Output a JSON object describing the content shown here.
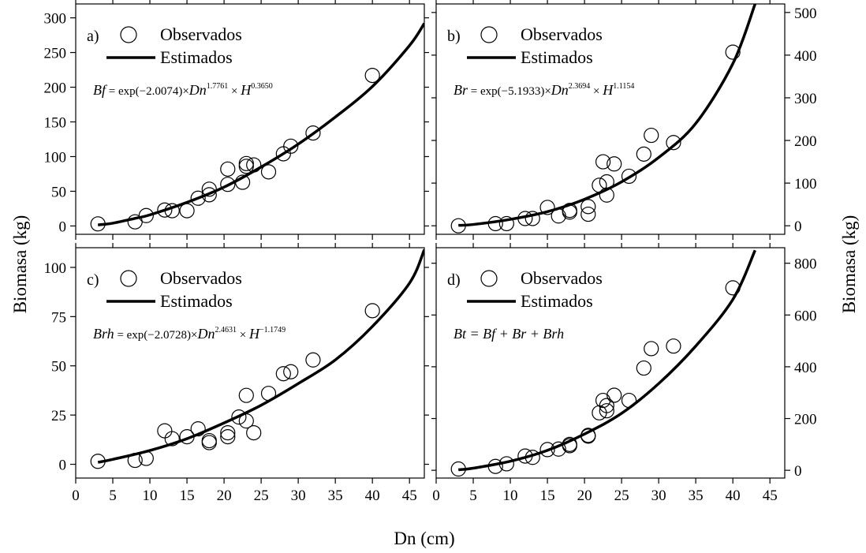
{
  "figure": {
    "xlabel": "Dn (cm)",
    "ylabel_left": "Biomasa (kg)",
    "ylabel_right": "Biomasa (kg)"
  },
  "chart_data": [
    {
      "type": "scatter",
      "panel_label": "a)",
      "legend": {
        "observed": "Observados",
        "estimated": "Estimados",
        "placement": "top-left"
      },
      "equation": {
        "lhs": "Bf",
        "prefix": " = exp(",
        "coef": "−2.0074",
        "mid1": ")×",
        "v1": "Dn",
        "e1": "1.7761",
        "mid2": " × ",
        "v2": "H",
        "e2": "0.3650"
      },
      "xlim": [
        0,
        47
      ],
      "ylim": [
        -12,
        320
      ],
      "xticks": [
        0,
        5,
        10,
        15,
        20,
        25,
        30,
        35,
        40,
        45
      ],
      "yticks": [
        0,
        50,
        100,
        150,
        200,
        250,
        300
      ],
      "y_axis_side": "left",
      "observed": [
        {
          "x": 3,
          "y": 3
        },
        {
          "x": 8,
          "y": 6
        },
        {
          "x": 9.5,
          "y": 15
        },
        {
          "x": 12,
          "y": 23
        },
        {
          "x": 13,
          "y": 22
        },
        {
          "x": 15,
          "y": 22
        },
        {
          "x": 16.5,
          "y": 40
        },
        {
          "x": 18,
          "y": 53
        },
        {
          "x": 18,
          "y": 45
        },
        {
          "x": 20.5,
          "y": 82
        },
        {
          "x": 20.5,
          "y": 60
        },
        {
          "x": 22.5,
          "y": 63
        },
        {
          "x": 23,
          "y": 86
        },
        {
          "x": 23,
          "y": 90
        },
        {
          "x": 24,
          "y": 88
        },
        {
          "x": 26,
          "y": 78
        },
        {
          "x": 28,
          "y": 104
        },
        {
          "x": 29,
          "y": 115
        },
        {
          "x": 32,
          "y": 134
        },
        {
          "x": 40,
          "y": 217
        }
      ],
      "estimated": {
        "x": [
          3,
          5,
          8,
          10,
          15,
          20,
          25,
          30,
          35,
          40,
          45,
          47
        ],
        "y": [
          1.5,
          4,
          11,
          16,
          34,
          56,
          85,
          118,
          157,
          201,
          260,
          292
        ]
      }
    },
    {
      "type": "scatter",
      "panel_label": "b)",
      "legend": {
        "observed": "Observados",
        "estimated": "Estimados",
        "placement": "top-left"
      },
      "equation": {
        "lhs": "Br",
        "prefix": " = exp(",
        "coef": "−5.1933",
        "mid1": ")×",
        "v1": "Dn",
        "e1": "2.3694",
        "mid2": " × ",
        "v2": "H",
        "e2": "1.1154"
      },
      "xlim": [
        0,
        47
      ],
      "ylim": [
        -20,
        520
      ],
      "xticks": [
        0,
        5,
        10,
        15,
        20,
        25,
        30,
        35,
        40,
        45
      ],
      "yticks": [
        0,
        100,
        200,
        300,
        400,
        500
      ],
      "y_axis_side": "right",
      "observed": [
        {
          "x": 3,
          "y": 0
        },
        {
          "x": 8,
          "y": 5
        },
        {
          "x": 9.5,
          "y": 5
        },
        {
          "x": 12,
          "y": 17
        },
        {
          "x": 13,
          "y": 17
        },
        {
          "x": 15,
          "y": 43
        },
        {
          "x": 16.5,
          "y": 23
        },
        {
          "x": 18,
          "y": 36
        },
        {
          "x": 18,
          "y": 32
        },
        {
          "x": 20.5,
          "y": 27
        },
        {
          "x": 20.5,
          "y": 45
        },
        {
          "x": 22,
          "y": 95
        },
        {
          "x": 22.5,
          "y": 150
        },
        {
          "x": 23,
          "y": 103
        },
        {
          "x": 23,
          "y": 72
        },
        {
          "x": 24,
          "y": 145
        },
        {
          "x": 26,
          "y": 116
        },
        {
          "x": 28,
          "y": 168
        },
        {
          "x": 29,
          "y": 212
        },
        {
          "x": 32,
          "y": 195
        },
        {
          "x": 40,
          "y": 407
        }
      ],
      "estimated": {
        "x": [
          3,
          5,
          10,
          15,
          20,
          25,
          30,
          35,
          40,
          43
        ],
        "y": [
          1,
          3,
          15,
          33,
          62,
          103,
          160,
          240,
          380,
          520
        ]
      }
    },
    {
      "type": "scatter",
      "panel_label": "c)",
      "legend": {
        "observed": "Observados",
        "estimated": "Estimados",
        "placement": "top-left"
      },
      "equation": {
        "lhs": "Brh",
        "prefix": " = exp(",
        "coef": "−2.0728",
        "mid1": ")×",
        "v1": "Dn",
        "e1": "2.4631",
        "mid2": " × ",
        "v2": "H",
        "e2": "−1.1749"
      },
      "xlim": [
        0,
        47
      ],
      "ylim": [
        -7,
        110
      ],
      "xticks": [
        0,
        5,
        10,
        15,
        20,
        25,
        30,
        35,
        40,
        45
      ],
      "yticks": [
        0,
        25,
        50,
        75,
        100
      ],
      "y_axis_side": "left",
      "observed": [
        {
          "x": 3,
          "y": 1.5
        },
        {
          "x": 8,
          "y": 2
        },
        {
          "x": 9.5,
          "y": 3
        },
        {
          "x": 12,
          "y": 17
        },
        {
          "x": 13,
          "y": 13
        },
        {
          "x": 15,
          "y": 14
        },
        {
          "x": 16.5,
          "y": 18
        },
        {
          "x": 18,
          "y": 11
        },
        {
          "x": 18,
          "y": 12
        },
        {
          "x": 20.5,
          "y": 14
        },
        {
          "x": 20.5,
          "y": 16
        },
        {
          "x": 22,
          "y": 24
        },
        {
          "x": 23,
          "y": 22
        },
        {
          "x": 23,
          "y": 35
        },
        {
          "x": 24,
          "y": 16
        },
        {
          "x": 26,
          "y": 36
        },
        {
          "x": 28,
          "y": 46
        },
        {
          "x": 29,
          "y": 47
        },
        {
          "x": 32,
          "y": 53
        },
        {
          "x": 40,
          "y": 78
        }
      ],
      "estimated": {
        "x": [
          3,
          5,
          10,
          15,
          20,
          25,
          30,
          35,
          40,
          45,
          47
        ],
        "y": [
          1,
          2.5,
          7,
          13,
          21,
          30,
          41,
          53,
          70,
          92,
          109
        ]
      }
    },
    {
      "type": "scatter",
      "panel_label": "d)",
      "legend": {
        "observed": "Observados",
        "estimated": "Estimados",
        "placement": "top-left"
      },
      "equation": {
        "lhs": "Bt",
        "rest": " = Bf  + Br + Brh"
      },
      "xlim": [
        0,
        47
      ],
      "ylim": [
        -30,
        860
      ],
      "xticks": [
        0,
        5,
        10,
        15,
        20,
        25,
        30,
        35,
        40,
        45
      ],
      "yticks": [
        0,
        200,
        400,
        600,
        800
      ],
      "y_axis_side": "right",
      "observed": [
        {
          "x": 3,
          "y": 5
        },
        {
          "x": 8,
          "y": 15
        },
        {
          "x": 9.5,
          "y": 25
        },
        {
          "x": 12,
          "y": 55
        },
        {
          "x": 13,
          "y": 50
        },
        {
          "x": 15,
          "y": 80
        },
        {
          "x": 16.5,
          "y": 82
        },
        {
          "x": 18,
          "y": 100
        },
        {
          "x": 18,
          "y": 95
        },
        {
          "x": 20.5,
          "y": 132
        },
        {
          "x": 20.5,
          "y": 135
        },
        {
          "x": 22,
          "y": 222
        },
        {
          "x": 22.5,
          "y": 270
        },
        {
          "x": 23,
          "y": 230
        },
        {
          "x": 23,
          "y": 250
        },
        {
          "x": 24,
          "y": 290
        },
        {
          "x": 26,
          "y": 270
        },
        {
          "x": 28,
          "y": 395
        },
        {
          "x": 29,
          "y": 470
        },
        {
          "x": 32,
          "y": 480
        },
        {
          "x": 40,
          "y": 705
        }
      ],
      "estimated": {
        "x": [
          3,
          5,
          10,
          15,
          20,
          25,
          30,
          35,
          40,
          43
        ],
        "y": [
          2,
          8,
          35,
          77,
          140,
          220,
          335,
          480,
          660,
          850
        ]
      }
    }
  ]
}
